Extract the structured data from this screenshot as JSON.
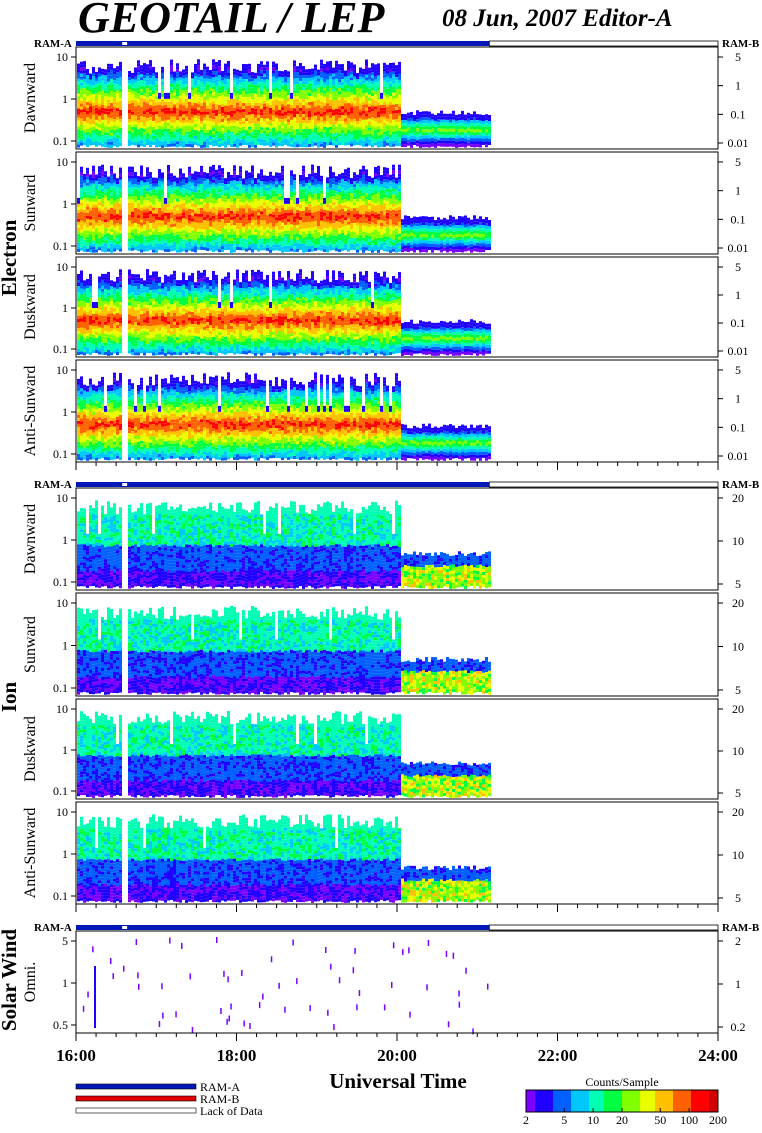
{
  "header": {
    "title": "GEOTAIL / LEP",
    "date_editor": "08 Jun, 2007   Editor-A"
  },
  "colors": {
    "ram_a": "#0018b8",
    "ram_b": "#e00000",
    "colormap": [
      "#7a00ff",
      "#2000ff",
      "#0060ff",
      "#00c8ff",
      "#00ffb4",
      "#00ff40",
      "#80ff00",
      "#e8ff00",
      "#ffc000",
      "#ff6000",
      "#ff0000",
      "#d00000"
    ]
  },
  "legend": {
    "ram_a": "RAM-A",
    "ram_b": "RAM-B",
    "lack": "Lack of Data",
    "colorbar_title": "Counts/Sample",
    "colorbar_ticks": [
      "2",
      "5",
      "10",
      "20",
      "50",
      "100",
      "200"
    ]
  },
  "chart_data": {
    "type": "heatmap",
    "xlabel": "Universal Time",
    "x_ticks": [
      "16:00",
      "18:00",
      "20:00",
      "22:00",
      "24:00"
    ],
    "x_range_hours": [
      16,
      24
    ],
    "data_end_hour": 21.15,
    "data_gaps_hours": [
      [
        16.55,
        16.63
      ]
    ],
    "groups": [
      {
        "name": "Electron",
        "ram_left": "RAM-A",
        "ram_right": "RAM-B",
        "left_ticks": [
          "10",
          "1",
          "0.1"
        ],
        "right_ticks": [
          "5",
          "1",
          "0.1",
          "0.01"
        ],
        "panels": [
          {
            "name": "Dawnward",
            "left_extra_tick": ""
          },
          {
            "name": "Sunward",
            "left_extra_tick": ""
          },
          {
            "name": "Duskward",
            "left_extra_tick": ""
          },
          {
            "name": "Anti-Sunward",
            "left_extra_tick": ""
          }
        ]
      },
      {
        "name": "Ion",
        "ram_left": "RAM-A",
        "ram_right": "RAM-B",
        "left_ticks": [
          "10",
          "1",
          "0.1"
        ],
        "right_ticks": [
          "20",
          "10",
          "5"
        ],
        "panels": [
          {
            "name": "Dawnward"
          },
          {
            "name": "Sunward"
          },
          {
            "name": "Duskward"
          },
          {
            "name": "Anti-Sunward"
          }
        ]
      },
      {
        "name": "Solar Wind",
        "ram_left": "RAM-A",
        "ram_right": "RAM-B",
        "left_ticks": [
          "5",
          "1",
          "0.5"
        ],
        "right_ticks": [
          "2",
          "1",
          "0.2"
        ],
        "panels": [
          {
            "name": "Omni."
          }
        ]
      }
    ]
  }
}
